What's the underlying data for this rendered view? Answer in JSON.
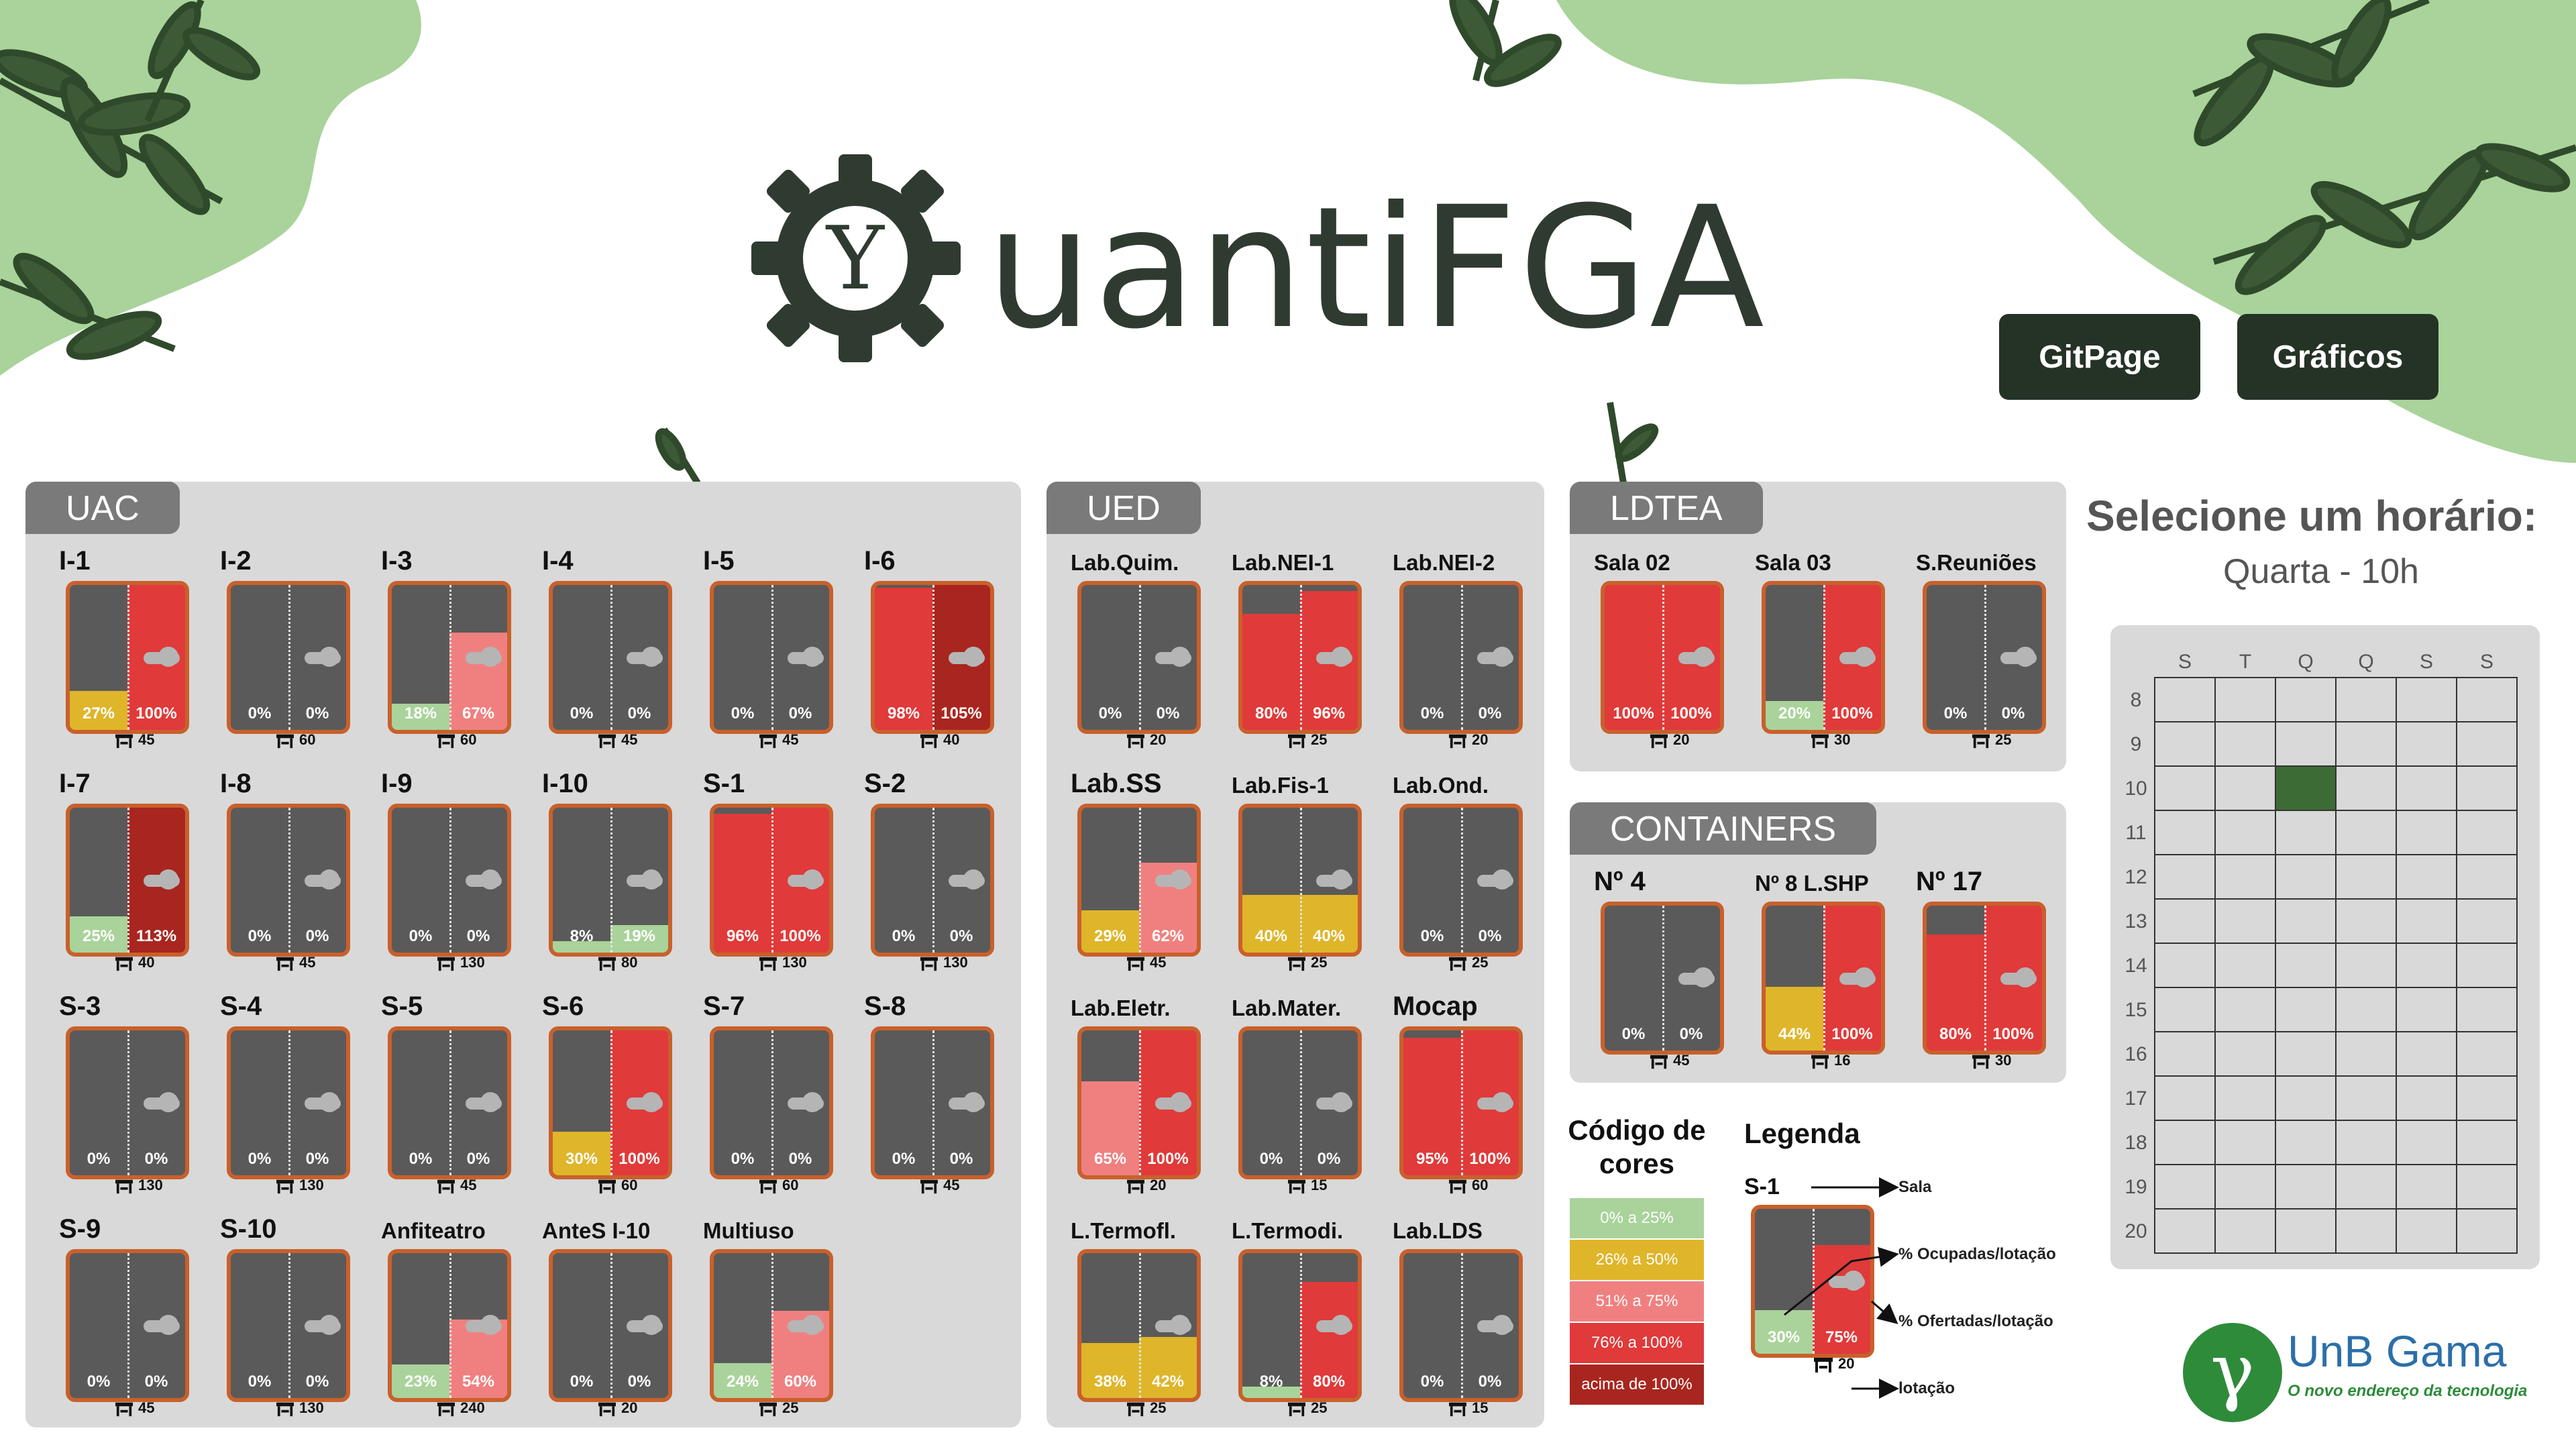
{
  "header": {
    "logo_text": "uantiFGA",
    "logo_letter": "Y",
    "btn_gitpage": "GitPage",
    "btn_graficos": "Gráficos"
  },
  "colors": {
    "green1": "#a9d39a",
    "green_dark": "#3d5a36",
    "accent": "#253226",
    "door": "#5a5a5a",
    "border": "#c9602b",
    "lvl1": "#a9d39a",
    "lvl2": "#dfb52a",
    "lvl3": "#f08080",
    "lvl4": "#e03a3a",
    "lvl5": "#a8261f"
  },
  "panels": {
    "uac": "UAC",
    "ued": "UED",
    "ldtea": "LDTEA",
    "containers": "CONTAINERS"
  },
  "rooms": {
    "uac": [
      {
        "name": "I-1",
        "occ": 27,
        "off": 100,
        "cap": "45"
      },
      {
        "name": "I-2",
        "occ": 0,
        "off": 0,
        "cap": "60"
      },
      {
        "name": "I-3",
        "occ": 18,
        "off": 67,
        "cap": "60"
      },
      {
        "name": "I-4",
        "occ": 0,
        "off": 0,
        "cap": "45"
      },
      {
        "name": "I-5",
        "occ": 0,
        "off": 0,
        "cap": "45"
      },
      {
        "name": "I-6",
        "occ": 98,
        "off": 105,
        "cap": "40"
      },
      {
        "name": "I-7",
        "occ": 25,
        "off": 113,
        "cap": "40"
      },
      {
        "name": "I-8",
        "occ": 0,
        "off": 0,
        "cap": "45"
      },
      {
        "name": "I-9",
        "occ": 0,
        "off": 0,
        "cap": "130"
      },
      {
        "name": "I-10",
        "occ": 8,
        "off": 19,
        "cap": "80"
      },
      {
        "name": "S-1",
        "occ": 96,
        "off": 100,
        "cap": "130"
      },
      {
        "name": "S-2",
        "occ": 0,
        "off": 0,
        "cap": "130"
      },
      {
        "name": "S-3",
        "occ": 0,
        "off": 0,
        "cap": "130"
      },
      {
        "name": "S-4",
        "occ": 0,
        "off": 0,
        "cap": "130"
      },
      {
        "name": "S-5",
        "occ": 0,
        "off": 0,
        "cap": "45"
      },
      {
        "name": "S-6",
        "occ": 30,
        "off": 100,
        "cap": "60"
      },
      {
        "name": "S-7",
        "occ": 0,
        "off": 0,
        "cap": "60"
      },
      {
        "name": "S-8",
        "occ": 0,
        "off": 0,
        "cap": "45"
      },
      {
        "name": "S-9",
        "occ": 0,
        "off": 0,
        "cap": "45"
      },
      {
        "name": "S-10",
        "occ": 0,
        "off": 0,
        "cap": "130"
      },
      {
        "name": "Anfiteatro",
        "occ": 23,
        "off": 54,
        "cap": "240"
      },
      {
        "name": "AnteS I-10",
        "occ": 0,
        "off": 0,
        "cap": "20"
      },
      {
        "name": "Multiuso",
        "occ": 24,
        "off": 60,
        "cap": "25"
      }
    ],
    "ued": [
      {
        "name": "Lab.Quim.",
        "occ": 0,
        "off": 0,
        "cap": "20"
      },
      {
        "name": "Lab.NEI-1",
        "occ": 80,
        "off": 96,
        "cap": "25"
      },
      {
        "name": "Lab.NEI-2",
        "occ": 0,
        "off": 0,
        "cap": "20"
      },
      {
        "name": "Lab.SS",
        "occ": 29,
        "off": 62,
        "cap": "45"
      },
      {
        "name": "Lab.Fis-1",
        "occ": 40,
        "off": 40,
        "cap": "25"
      },
      {
        "name": "Lab.Ond.",
        "occ": 0,
        "off": 0,
        "cap": "25"
      },
      {
        "name": "Lab.Eletr.",
        "occ": 65,
        "off": 100,
        "cap": "20"
      },
      {
        "name": "Lab.Mater.",
        "occ": 0,
        "off": 0,
        "cap": "15"
      },
      {
        "name": "Mocap",
        "occ": 95,
        "off": 100,
        "cap": "60"
      },
      {
        "name": "L.Termofl.",
        "occ": 38,
        "off": 42,
        "cap": "25"
      },
      {
        "name": "L.Termodi.",
        "occ": 8,
        "off": 80,
        "cap": "25"
      },
      {
        "name": "Lab.LDS",
        "occ": 0,
        "off": 0,
        "cap": "15"
      }
    ],
    "ldtea": [
      {
        "name": "Sala 02",
        "occ": 100,
        "off": 100,
        "cap": "20"
      },
      {
        "name": "Sala 03",
        "occ": 20,
        "off": 100,
        "cap": "30"
      },
      {
        "name": "S.Reuniões",
        "occ": 0,
        "off": 0,
        "cap": "25"
      }
    ],
    "containers": [
      {
        "name": "Nº 4",
        "occ": 0,
        "off": 0,
        "cap": "45"
      },
      {
        "name": "Nº 8 L.SHP",
        "occ": 44,
        "off": 100,
        "cap": "16"
      },
      {
        "name": "Nº 17",
        "occ": 80,
        "off": 100,
        "cap": "30"
      }
    ]
  },
  "schedule": {
    "title": "Selecione um horário:",
    "selected": "Quarta - 10h",
    "days": [
      "S",
      "T",
      "Q",
      "Q",
      "S",
      "S"
    ],
    "hours": [
      "8",
      "9",
      "10",
      "11",
      "12",
      "13",
      "14",
      "15",
      "16",
      "17",
      "18",
      "19",
      "20"
    ],
    "selected_day_index": 2,
    "selected_hour": "10"
  },
  "color_code": {
    "title_line1": "Código de",
    "title_line2": "cores",
    "items": [
      "0% a 25%",
      "26% a 50%",
      "51% a 75%",
      "76% a 100%",
      "acima de 100%"
    ]
  },
  "legend": {
    "title": "Legenda",
    "room": "S-1",
    "occ_label": "30%",
    "off_label": "75%",
    "cap": "20",
    "arrow_sala": "Sala",
    "arrow_occ": "% Ocupadas/lotação",
    "arrow_off": "% Ofertadas/lotação",
    "arrow_cap": "lotação"
  },
  "footer_logo": {
    "symbol": "γ",
    "name": "UnB Gama",
    "tagline": "O novo endereço da tecnologia"
  }
}
